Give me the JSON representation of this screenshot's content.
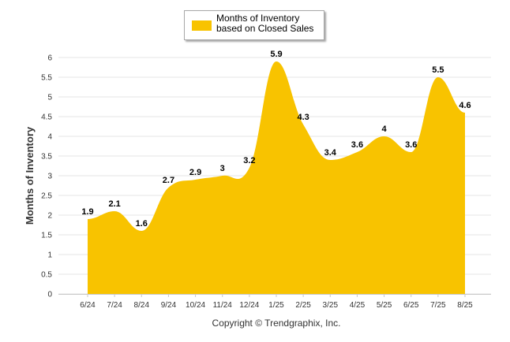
{
  "chart_data": {
    "type": "area",
    "categories": [
      "6/24",
      "7/24",
      "8/24",
      "9/24",
      "10/24",
      "11/24",
      "12/24",
      "1/25",
      "2/25",
      "3/25",
      "4/25",
      "5/25",
      "6/25",
      "7/25",
      "8/25"
    ],
    "series": [
      {
        "name": "Months of Inventory based on Closed Sales",
        "color": "#f8c300",
        "values": [
          1.9,
          2.1,
          1.6,
          2.7,
          2.9,
          3,
          3.2,
          5.9,
          4.3,
          3.4,
          3.6,
          4,
          3.6,
          5.5,
          4.6
        ]
      }
    ],
    "data_labels": [
      "1.9",
      "2.1",
      "1.6",
      "2.7",
      "2.9",
      "3",
      "3.2",
      "5.9",
      "4.3",
      "3.4",
      "3.6",
      "4",
      "3.6",
      "5.5",
      "4.6"
    ],
    "ylabel": "Months of Inventory",
    "xlabel": "",
    "ylim": [
      0,
      6
    ],
    "yticks": [
      "0",
      "0.5",
      "1",
      "1.5",
      "2",
      "2.5",
      "3",
      "3.5",
      "4",
      "4.5",
      "5",
      "5.5",
      "6"
    ],
    "grid": true,
    "legend": "top-center"
  },
  "legend": {
    "label": "Months of Inventory based on Closed Sales",
    "color": "#f8c300"
  },
  "footer": {
    "copyright": "Copyright © Trendgraphix, Inc."
  }
}
